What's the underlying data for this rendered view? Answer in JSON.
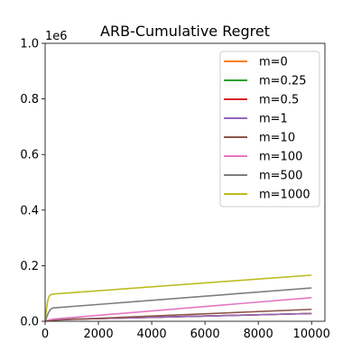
{
  "chart_data": {
    "type": "line",
    "title": "ARB-Cumulative Regret",
    "xlabel": "",
    "ylabel": "",
    "xlim": [
      0,
      10500
    ],
    "ylim": [
      0,
      1.0
    ],
    "y_scale_label": "1e6",
    "xticks": [
      0,
      2000,
      4000,
      6000,
      8000,
      10000
    ],
    "xtick_labels": [
      "0",
      "2000",
      "4000",
      "6000",
      "8000",
      "10000"
    ],
    "yticks": [
      0.0,
      0.2,
      0.4,
      0.6,
      0.8,
      1.0
    ],
    "ytick_labels": [
      "0.0",
      "0.2",
      "0.4",
      "0.6",
      "0.8",
      "1.0"
    ],
    "legend_position": "top-right",
    "series": [
      {
        "name": "m=0",
        "color": "#ff7f0e",
        "x": [
          0,
          100,
          300,
          10000
        ],
        "y": [
          0,
          0.003,
          0.006,
          0.028
        ]
      },
      {
        "name": "m=0.25",
        "color": "#2ca02c",
        "x": [
          0,
          100,
          300,
          10000
        ],
        "y": [
          0,
          0.003,
          0.006,
          0.028
        ]
      },
      {
        "name": "m=0.5",
        "color": "#d62728",
        "x": [
          0,
          100,
          300,
          10000
        ],
        "y": [
          0,
          0.003,
          0.006,
          0.028
        ]
      },
      {
        "name": "m=1",
        "color": "#9467bd",
        "x": [
          0,
          100,
          300,
          10000
        ],
        "y": [
          0,
          0.003,
          0.006,
          0.028
        ]
      },
      {
        "name": "m=10",
        "color": "#8c564b",
        "x": [
          0,
          100,
          300,
          10000
        ],
        "y": [
          0,
          0.002,
          0.004,
          0.043
        ]
      },
      {
        "name": "m=100",
        "color": "#e377c2",
        "x": [
          0,
          100,
          300,
          10000
        ],
        "y": [
          0,
          0.004,
          0.008,
          0.085
        ]
      },
      {
        "name": "m=500",
        "color": "#7f7f7f",
        "x": [
          0,
          60,
          120,
          200,
          300,
          10000
        ],
        "y": [
          0,
          0.015,
          0.03,
          0.043,
          0.048,
          0.12
        ]
      },
      {
        "name": "m=1000",
        "color": "#bcbd22",
        "x": [
          0,
          50,
          100,
          150,
          200,
          300,
          10000
        ],
        "y": [
          0,
          0.045,
          0.075,
          0.09,
          0.095,
          0.098,
          0.166
        ]
      }
    ]
  }
}
